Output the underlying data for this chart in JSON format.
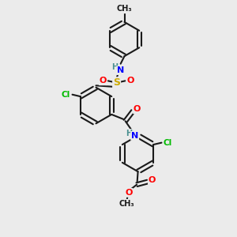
{
  "bg_color": "#ebebeb",
  "bond_color": "#1a1a1a",
  "bond_width": 1.5,
  "figsize": [
    3.0,
    3.0
  ],
  "dpi": 100,
  "colors": {
    "C": "#1a1a1a",
    "N": "#0000ff",
    "NH": "#4a9090",
    "O": "#ff0000",
    "S": "#ccaa00",
    "Cl": "#00bb00",
    "H": "#606060"
  },
  "ring_r": 0.72
}
